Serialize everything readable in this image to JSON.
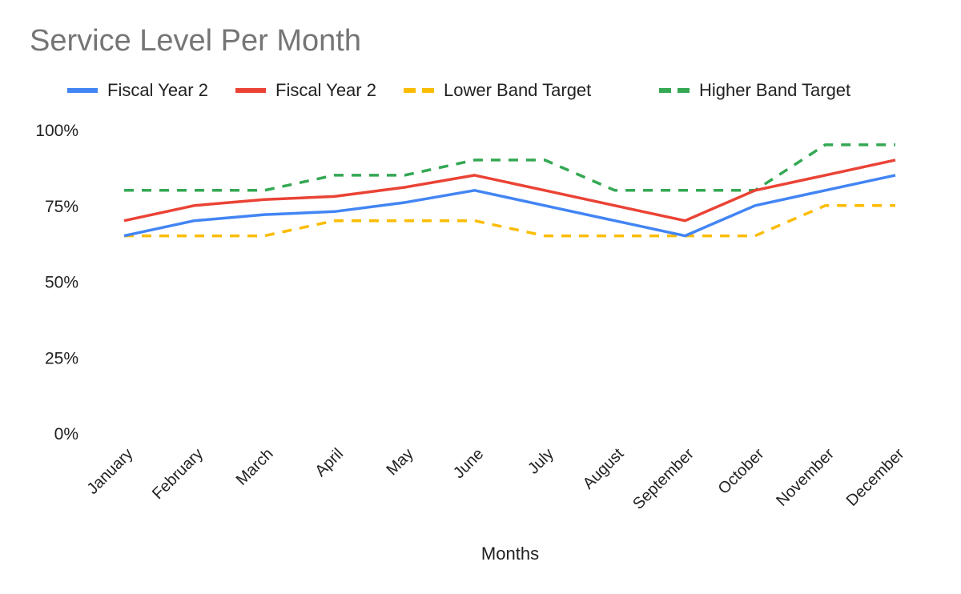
{
  "chart_data": {
    "type": "line",
    "title": "Service Level Per Month",
    "xlabel": "Months",
    "ylabel": "",
    "ylim": [
      0,
      1
    ],
    "yticks": [
      "0%",
      "25%",
      "50%",
      "75%",
      "100%"
    ],
    "categories": [
      "January",
      "February",
      "March",
      "April",
      "May",
      "June",
      "July",
      "August",
      "September",
      "October",
      "November",
      "December"
    ],
    "series": [
      {
        "name": "Fiscal Year 2",
        "color": "#4285f4",
        "style": "solid",
        "values": [
          0.65,
          0.7,
          0.72,
          0.73,
          0.76,
          0.8,
          0.75,
          0.7,
          0.65,
          0.75,
          0.8,
          0.85
        ]
      },
      {
        "name": "Fiscal Year 2",
        "color": "#ea4335",
        "style": "solid",
        "values": [
          0.7,
          0.75,
          0.77,
          0.78,
          0.81,
          0.85,
          0.8,
          0.75,
          0.7,
          0.8,
          0.85,
          0.9
        ]
      },
      {
        "name": "Lower Band Target",
        "color": "#fbbc04",
        "style": "dashed",
        "values": [
          0.65,
          0.65,
          0.65,
          0.7,
          0.7,
          0.7,
          0.65,
          0.65,
          0.65,
          0.65,
          0.75,
          0.75
        ]
      },
      {
        "name": "Higher Band Target",
        "color": "#34a853",
        "style": "dashed",
        "values": [
          0.8,
          0.8,
          0.8,
          0.85,
          0.85,
          0.9,
          0.9,
          0.8,
          0.8,
          0.8,
          0.95,
          0.95
        ]
      }
    ],
    "grid": false,
    "legend_position": "top"
  }
}
